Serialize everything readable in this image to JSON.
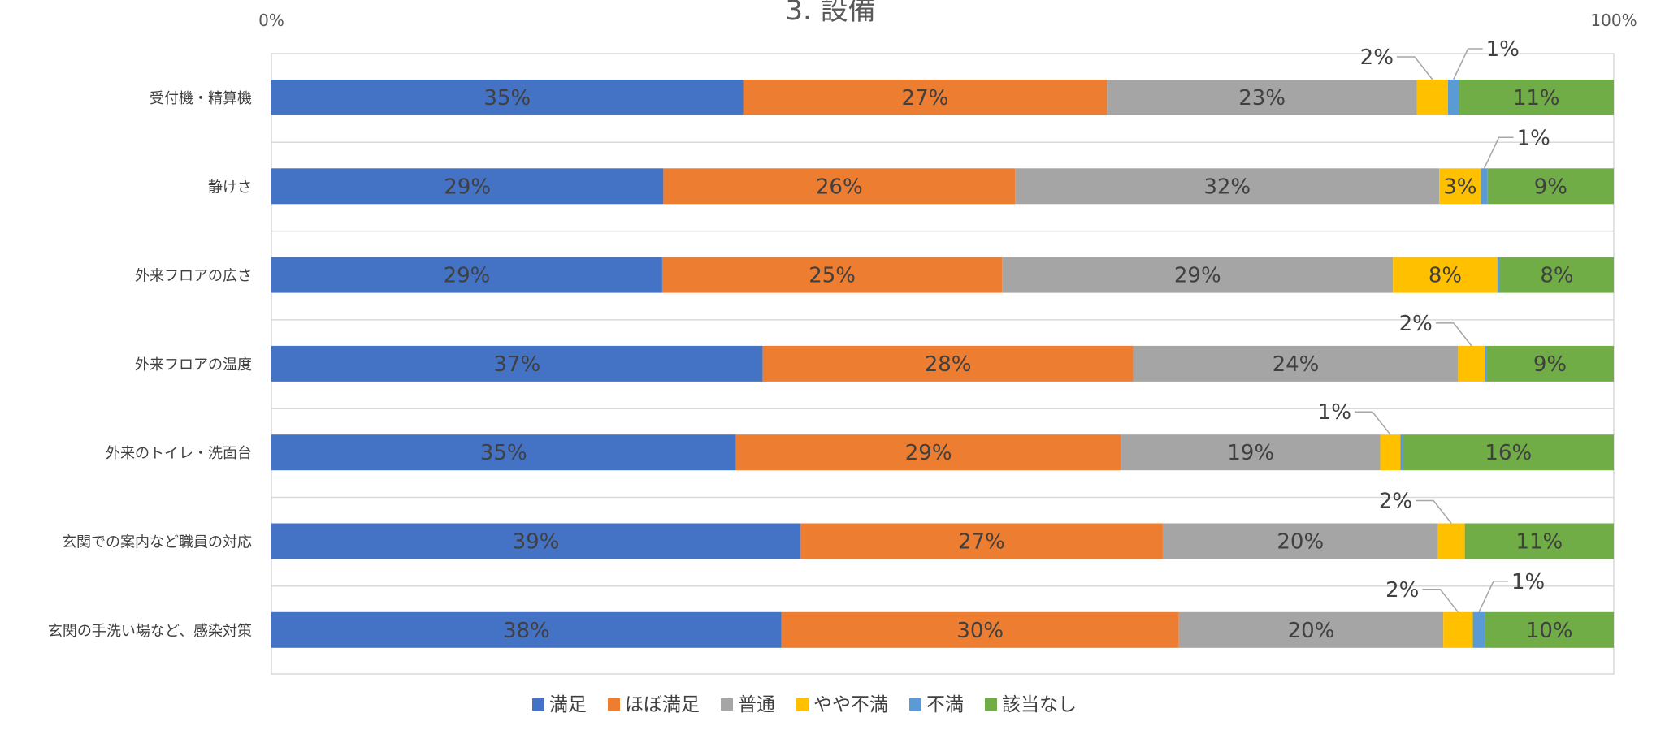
{
  "chart_data": {
    "type": "bar",
    "orientation": "horizontal",
    "stacked": "percent",
    "title": "3. 設備",
    "xlim": [
      0,
      100
    ],
    "x_tick_labels": [
      "0%",
      "100%"
    ],
    "categories": [
      "受付機・精算機",
      "静けさ",
      "外来フロアの広さ",
      "外来フロアの温度",
      "外来のトイレ・洗面台",
      "玄関での案内など職員の対応",
      "玄関の手洗い場など、感染対策"
    ],
    "series": [
      {
        "name": "満足",
        "color": "#4472C4",
        "values": [
          35,
          29,
          29,
          37,
          35,
          39,
          38
        ]
      },
      {
        "name": "ほぼ満足",
        "color": "#ED7D31",
        "values": [
          27,
          26,
          25,
          28,
          29,
          27,
          30
        ]
      },
      {
        "name": "普通",
        "color": "#A5A5A5",
        "values": [
          23,
          32,
          29,
          24,
          19,
          20,
          20
        ]
      },
      {
        "name": "やや不満",
        "color": "#FFC000",
        "values": [
          2,
          3,
          8,
          2,
          1,
          2,
          2
        ]
      },
      {
        "name": "不満",
        "color": "#5B9BD5",
        "values": [
          1,
          1,
          0,
          0,
          0,
          0,
          1
        ]
      },
      {
        "name": "該当なし",
        "color": "#70AD47",
        "values": [
          11,
          9,
          8,
          9,
          16,
          11,
          10
        ]
      }
    ],
    "segment_widths": [
      [
        35,
        27,
        23,
        2.3,
        0.8,
        11.5
      ],
      [
        29.2,
        26.2,
        31.6,
        3.1,
        0.5,
        9.4
      ],
      [
        29.2,
        25.4,
        29.2,
        7.8,
        0.2,
        8.5
      ],
      [
        36.6,
        27.6,
        24.2,
        2.0,
        0.1,
        9.5
      ],
      [
        34.6,
        28.7,
        19.3,
        1.5,
        0.2,
        15.7
      ],
      [
        39.4,
        27.0,
        20.5,
        2.0,
        0.0,
        11.1
      ],
      [
        38.0,
        29.6,
        19.7,
        2.2,
        0.9,
        9.6
      ]
    ],
    "legend_position": "bottom",
    "grid": true
  }
}
